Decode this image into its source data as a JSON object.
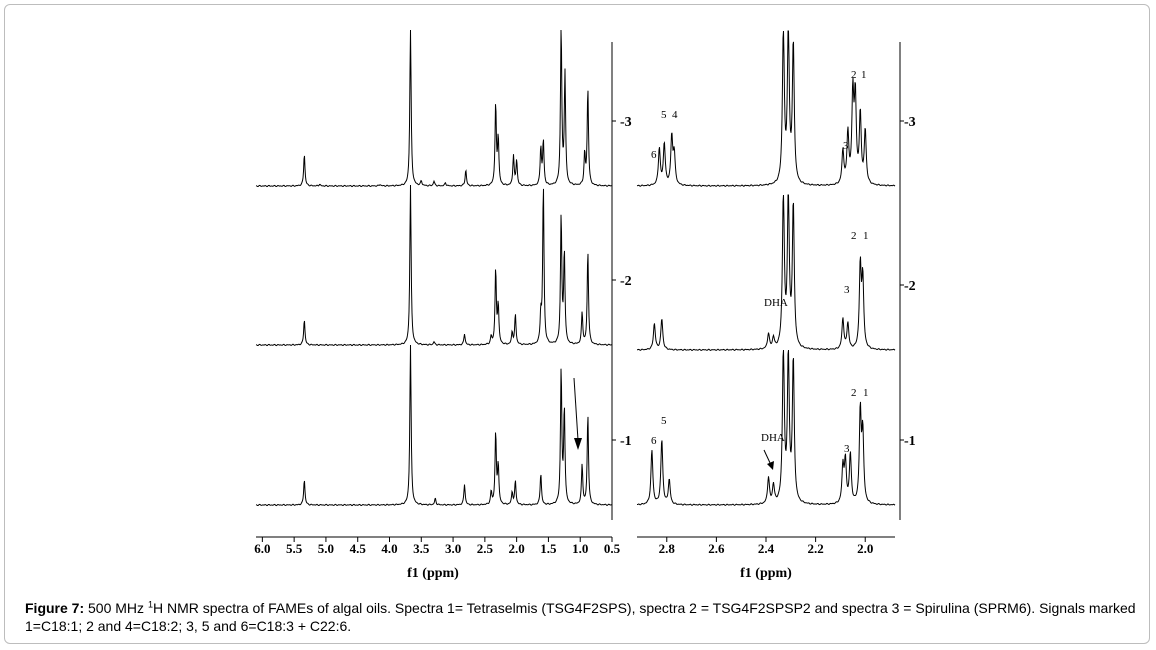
{
  "caption": {
    "label": "Figure 7:",
    "prefix": " 500 MHz ",
    "sup": "1",
    "text": "H NMR spectra of FAMEs of algal oils. Spectra 1= Tetraselmis (TSG4F2SPS), spectra 2 = TSG4F2SPSP2 and spectra 3 = Spirulina (SPRM6). Signals marked 1=C18:1; 2 and 4=C18:2; 3, 5 and 6=C18:3 + C22:6."
  },
  "chart_data": [
    {
      "type": "line",
      "panel": "left-full-spectrum",
      "xlabel": "f1 (ppm)",
      "xlim": [
        6.1,
        0.5
      ],
      "x_reversed": true,
      "x_ticks": [
        "6.0",
        "5.5",
        "5.0",
        "4.5",
        "4.0",
        "3.5",
        "3.0",
        "2.5",
        "2.0",
        "1.5",
        "1.0",
        "0.5"
      ],
      "trace_labels": [
        "-3",
        "-2",
        "-1"
      ],
      "series": [
        {
          "name": "3",
          "peaks": [
            {
              "x": 5.34,
              "h": 0.2
            },
            {
              "x": 5.1,
              "h": 0.01
            },
            {
              "x": 4.15,
              "h": 0.01
            },
            {
              "x": 3.67,
              "h": 1.0
            },
            {
              "x": 3.5,
              "h": 0.03
            },
            {
              "x": 3.3,
              "h": 0.03
            },
            {
              "x": 3.12,
              "h": 0.02
            },
            {
              "x": 2.8,
              "h": 0.1
            },
            {
              "x": 2.33,
              "h": 0.51
            },
            {
              "x": 2.29,
              "h": 0.3
            },
            {
              "x": 2.05,
              "h": 0.19
            },
            {
              "x": 2.0,
              "h": 0.16
            },
            {
              "x": 1.62,
              "h": 0.24
            },
            {
              "x": 1.58,
              "h": 0.28
            },
            {
              "x": 1.3,
              "h": 1.0
            },
            {
              "x": 1.24,
              "h": 0.7
            },
            {
              "x": 0.93,
              "h": 0.2
            },
            {
              "x": 0.88,
              "h": 0.61
            }
          ]
        },
        {
          "name": "2",
          "peaks": [
            {
              "x": 5.34,
              "h": 0.16
            },
            {
              "x": 3.67,
              "h": 1.0
            },
            {
              "x": 3.3,
              "h": 0.02
            },
            {
              "x": 2.82,
              "h": 0.07
            },
            {
              "x": 2.4,
              "h": 0.05
            },
            {
              "x": 2.33,
              "h": 0.47
            },
            {
              "x": 2.29,
              "h": 0.25
            },
            {
              "x": 2.07,
              "h": 0.08
            },
            {
              "x": 2.02,
              "h": 0.19
            },
            {
              "x": 1.62,
              "h": 0.18
            },
            {
              "x": 1.58,
              "h": 1.0
            },
            {
              "x": 1.3,
              "h": 0.81
            },
            {
              "x": 1.25,
              "h": 0.58
            },
            {
              "x": 0.97,
              "h": 0.2
            },
            {
              "x": 0.88,
              "h": 0.59
            }
          ]
        },
        {
          "name": "1",
          "peaks": [
            {
              "x": 5.34,
              "h": 0.16
            },
            {
              "x": 3.67,
              "h": 1.0
            },
            {
              "x": 3.28,
              "h": 0.04
            },
            {
              "x": 2.82,
              "h": 0.13
            },
            {
              "x": 2.4,
              "h": 0.08
            },
            {
              "x": 2.33,
              "h": 0.45
            },
            {
              "x": 2.29,
              "h": 0.25
            },
            {
              "x": 2.07,
              "h": 0.08
            },
            {
              "x": 2.02,
              "h": 0.15
            },
            {
              "x": 1.62,
              "h": 0.2
            },
            {
              "x": 1.3,
              "h": 0.85
            },
            {
              "x": 1.25,
              "h": 0.6
            },
            {
              "x": 0.97,
              "h": 0.25
            },
            {
              "x": 0.88,
              "h": 0.57
            }
          ]
        }
      ]
    },
    {
      "type": "line",
      "panel": "right-zoomed-spectrum",
      "xlabel": "f1 (ppm)",
      "xlim": [
        2.92,
        1.88
      ],
      "x_reversed": true,
      "x_ticks": [
        "2.8",
        "2.6",
        "2.4",
        "2.2",
        "2.0"
      ],
      "trace_labels": [
        "-3",
        "-2",
        "-1"
      ],
      "series": [
        {
          "name": "3",
          "peaks": [
            {
              "x": 2.83,
              "h": 0.24
            },
            {
              "x": 2.81,
              "h": 0.27
            },
            {
              "x": 2.78,
              "h": 0.31
            },
            {
              "x": 2.77,
              "h": 0.2
            },
            {
              "x": 2.33,
              "h": 1.0
            },
            {
              "x": 2.31,
              "h": 1.0
            },
            {
              "x": 2.29,
              "h": 0.9
            },
            {
              "x": 2.09,
              "h": 0.22
            },
            {
              "x": 2.07,
              "h": 0.33
            },
            {
              "x": 2.05,
              "h": 0.58
            },
            {
              "x": 2.04,
              "h": 0.55
            },
            {
              "x": 2.02,
              "h": 0.45
            },
            {
              "x": 2.0,
              "h": 0.35
            }
          ]
        },
        {
          "name": "2",
          "peaks": [
            {
              "x": 2.85,
              "h": 0.17
            },
            {
              "x": 2.82,
              "h": 0.2
            },
            {
              "x": 2.39,
              "h": 0.1
            },
            {
              "x": 2.37,
              "h": 0.07
            },
            {
              "x": 2.33,
              "h": 1.0
            },
            {
              "x": 2.31,
              "h": 0.98
            },
            {
              "x": 2.29,
              "h": 0.92
            },
            {
              "x": 2.09,
              "h": 0.2
            },
            {
              "x": 2.07,
              "h": 0.17
            },
            {
              "x": 2.02,
              "h": 0.53
            },
            {
              "x": 2.01,
              "h": 0.45
            }
          ]
        },
        {
          "name": "1",
          "peaks": [
            {
              "x": 2.86,
              "h": 0.35
            },
            {
              "x": 2.82,
              "h": 0.42
            },
            {
              "x": 2.79,
              "h": 0.16
            },
            {
              "x": 2.39,
              "h": 0.17
            },
            {
              "x": 2.37,
              "h": 0.12
            },
            {
              "x": 2.33,
              "h": 1.0
            },
            {
              "x": 2.31,
              "h": 0.95
            },
            {
              "x": 2.29,
              "h": 0.92
            },
            {
              "x": 2.09,
              "h": 0.24
            },
            {
              "x": 2.08,
              "h": 0.27
            },
            {
              "x": 2.06,
              "h": 0.32
            },
            {
              "x": 2.02,
              "h": 0.59
            },
            {
              "x": 2.01,
              "h": 0.45
            }
          ]
        }
      ],
      "annotations": [
        {
          "text": "5",
          "trace": "3"
        },
        {
          "text": "4",
          "trace": "3"
        },
        {
          "text": "6",
          "trace": "3"
        },
        {
          "text": "2",
          "trace": "3"
        },
        {
          "text": "1",
          "trace": "3"
        },
        {
          "text": "3",
          "trace": "3"
        },
        {
          "text": "DHA",
          "trace": "2"
        },
        {
          "text": "2",
          "trace": "2"
        },
        {
          "text": "1",
          "trace": "2"
        },
        {
          "text": "3",
          "trace": "2"
        },
        {
          "text": "5",
          "trace": "1"
        },
        {
          "text": "6",
          "trace": "1"
        },
        {
          "text": "DHA",
          "trace": "1"
        },
        {
          "text": "2",
          "trace": "1"
        },
        {
          "text": "1",
          "trace": "1"
        },
        {
          "text": "3",
          "trace": "1"
        }
      ]
    }
  ]
}
